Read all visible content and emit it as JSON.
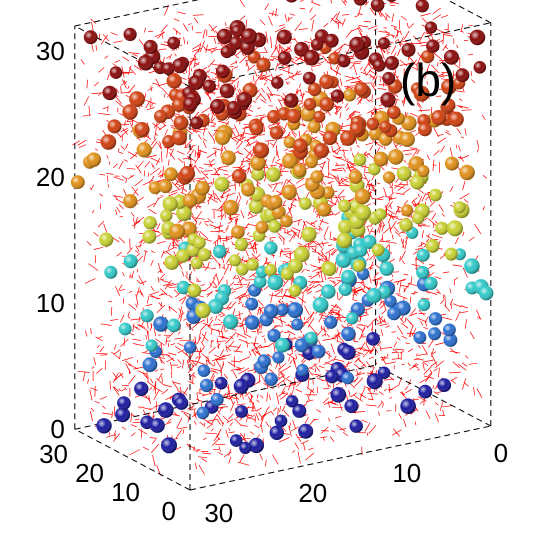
{
  "panel_label": "(b)",
  "chart_data": {
    "type": "scatter",
    "projection": "3d",
    "box_edges": "dashed",
    "grid": false,
    "background_network_color": "#ff0000",
    "z_axis": {
      "ticks": [
        0,
        10,
        20,
        30
      ],
      "tick_labels": [
        "0",
        "10",
        "20",
        "30"
      ],
      "lim": [
        0,
        32
      ]
    },
    "y_axis": {
      "ticks": [
        0,
        10,
        20,
        30
      ],
      "tick_labels": [
        "0",
        "10",
        "20",
        "30"
      ],
      "lim": [
        0,
        32
      ]
    },
    "x_axis": {
      "ticks": [
        0,
        10,
        20,
        30
      ],
      "tick_labels": [
        "0",
        "10",
        "20",
        "30"
      ],
      "lim": [
        0,
        32
      ]
    },
    "colormap_by_height": [
      "#1a1aa0",
      "#2a6fd0",
      "#30c8c8",
      "#c8d030",
      "#e09018",
      "#d04010",
      "#8a0a0a"
    ]
  }
}
